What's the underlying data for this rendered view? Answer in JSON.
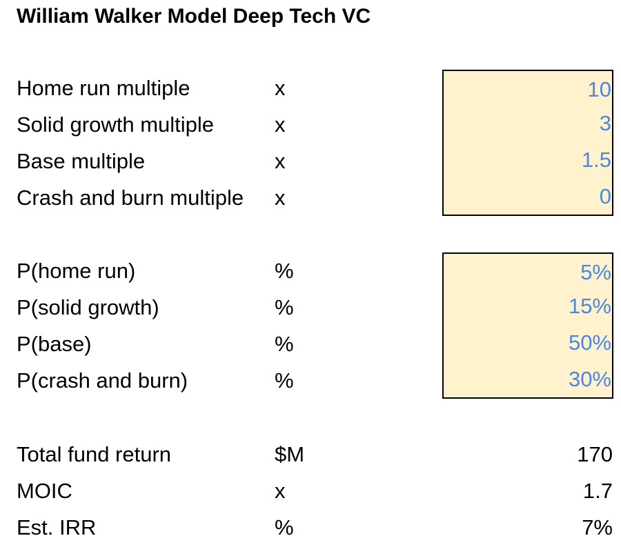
{
  "title": "William Walker Model Deep Tech VC",
  "multiples": [
    {
      "label": "Home run multiple",
      "unit": "x",
      "value": "10"
    },
    {
      "label": "Solid growth multiple",
      "unit": "x",
      "value": "3"
    },
    {
      "label": "Base multiple",
      "unit": "x",
      "value": "1.5"
    },
    {
      "label": "Crash and burn multiple",
      "unit": "x",
      "value": "0"
    }
  ],
  "probabilities": [
    {
      "label": "P(home run)",
      "unit": "%",
      "value": "5%"
    },
    {
      "label": "P(solid growth)",
      "unit": "%",
      "value": "15%"
    },
    {
      "label": "P(base)",
      "unit": "%",
      "value": "50%"
    },
    {
      "label": "P(crash and burn)",
      "unit": "%",
      "value": "30%"
    }
  ],
  "results": [
    {
      "label": "Total fund return",
      "unit": "$M",
      "value": "170"
    },
    {
      "label": "MOIC",
      "unit": "x",
      "value": "1.7"
    },
    {
      "label": "Est. IRR",
      "unit": "%",
      "value": "7%"
    }
  ],
  "colors": {
    "input_fill": "#fff2cc",
    "input_text": "#4a86e8",
    "border": "#000000",
    "text": "#000000"
  }
}
